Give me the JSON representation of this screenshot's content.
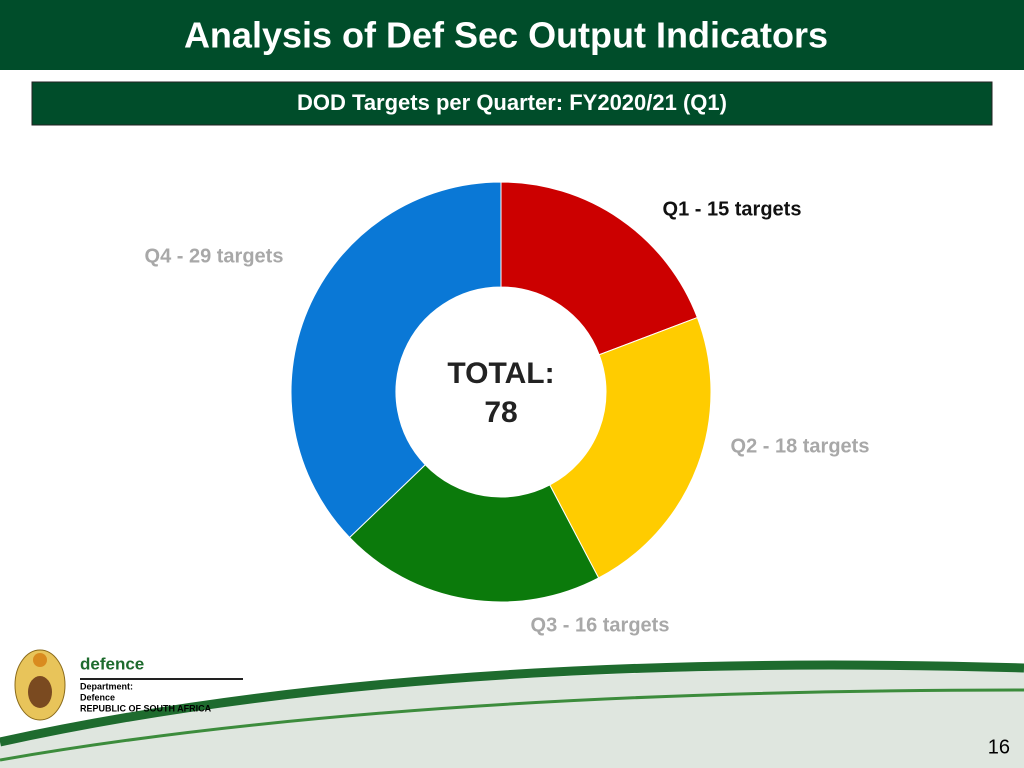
{
  "slide": {
    "title": "Analysis of Def Sec Output Indicators",
    "subtitle": "DOD Targets per Quarter: FY2020/21 (Q1)",
    "logo": {
      "name": "defence",
      "line1": "Department:",
      "line2": "Defence",
      "line3": "REPUBLIC OF SOUTH AFRICA"
    },
    "page_number": "16"
  },
  "chart_data": {
    "type": "donut",
    "values": [
      15,
      18,
      16,
      29
    ],
    "value_labels": [
      "Q1 - 15 targets",
      "Q2 - 18 targets",
      "Q3 - 16 targets",
      "Q4 - 29 targets"
    ],
    "colors": [
      "#cc0000",
      "#ffcc00",
      "#0b7a0b",
      "#0a78d6"
    ],
    "center_label": "TOTAL:",
    "total": 78
  }
}
